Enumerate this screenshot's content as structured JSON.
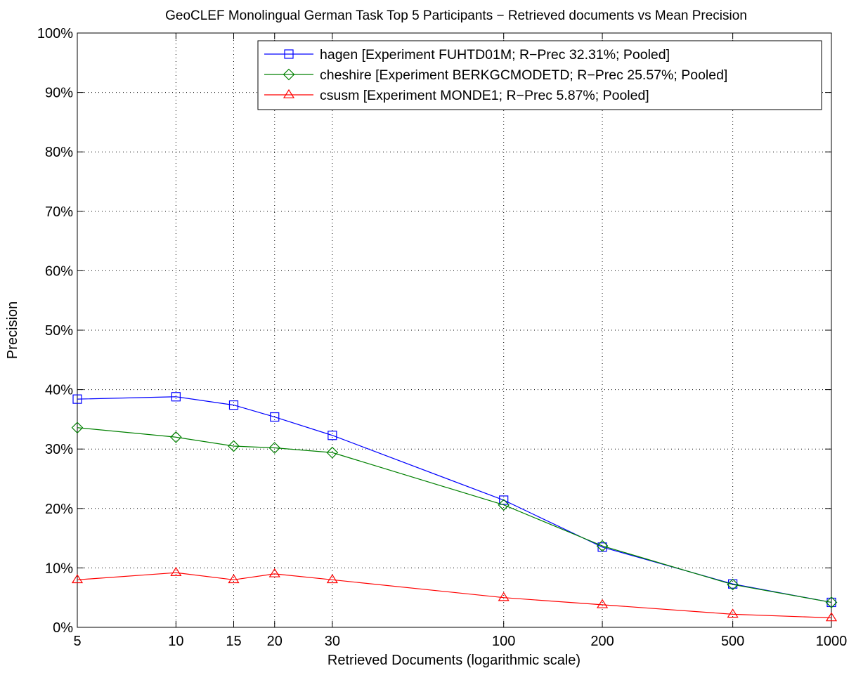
{
  "chart_data": {
    "type": "line",
    "title": "GeoCLEF Monolingual German Task Top 5 Participants − Retrieved documents vs Mean Precision",
    "xlabel": "Retrieved Documents (logarithmic scale)",
    "ylabel": "Precision",
    "x_scale": "log",
    "xlim": [
      5,
      1000
    ],
    "ylim": [
      0,
      100
    ],
    "x": [
      5,
      10,
      15,
      20,
      30,
      100,
      200,
      500,
      1000
    ],
    "x_tick_labels": [
      "5",
      "10",
      "15",
      "20",
      "30",
      "100",
      "200",
      "500",
      "1000"
    ],
    "y_ticks": [
      0,
      10,
      20,
      30,
      40,
      50,
      60,
      70,
      80,
      90,
      100
    ],
    "y_tick_labels": [
      "0%",
      "10%",
      "20%",
      "30%",
      "40%",
      "50%",
      "60%",
      "70%",
      "80%",
      "90%",
      "100%"
    ],
    "grid": true,
    "legend_position": "top-right",
    "series": [
      {
        "name": "hagen [Experiment FUHTD01M; R−Prec 32.31%; Pooled]",
        "color": "#0000ff",
        "marker": "square",
        "values": [
          38.4,
          38.8,
          37.4,
          35.4,
          32.3,
          21.4,
          13.5,
          7.3,
          4.2
        ]
      },
      {
        "name": "cheshire [Experiment BERKGCMODETD; R−Prec 25.57%; Pooled]",
        "color": "#008000",
        "marker": "diamond",
        "values": [
          33.6,
          32.0,
          30.5,
          30.2,
          29.4,
          20.6,
          13.7,
          7.2,
          4.2
        ]
      },
      {
        "name": "csusm [Experiment MONDE1; R−Prec 5.87%; Pooled]",
        "color": "#ff0000",
        "marker": "triangle",
        "values": [
          8.0,
          9.2,
          8.0,
          9.0,
          8.0,
          5.0,
          3.8,
          2.2,
          1.6
        ]
      }
    ]
  }
}
